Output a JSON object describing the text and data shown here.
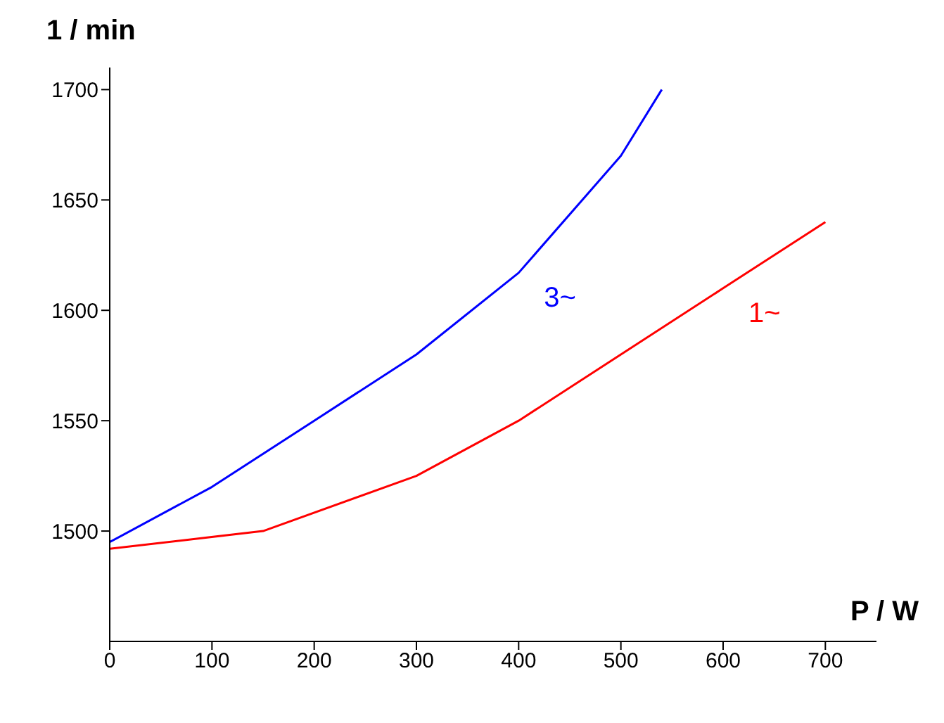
{
  "chart_data": {
    "type": "line",
    "xlabel": "P / W",
    "ylabel": "1 / min",
    "xlim": [
      0,
      750
    ],
    "xticks": [
      0,
      100,
      200,
      300,
      400,
      500,
      600,
      700
    ],
    "ylim": [
      1450,
      1710
    ],
    "yticks": [
      1500,
      1550,
      1600,
      1650,
      1700
    ],
    "grid": false,
    "legend": false,
    "marker": "none",
    "line_style": "solid",
    "series": [
      {
        "name": "3~",
        "color": "#0000ff",
        "x": [
          0,
          100,
          200,
          300,
          400,
          500,
          540
        ],
        "values": [
          1495,
          1520,
          1550,
          1580,
          1617,
          1670,
          1700
        ]
      },
      {
        "name": "1~",
        "color": "#ff0000",
        "x": [
          0,
          150,
          300,
          400,
          500,
          600,
          700
        ],
        "values": [
          1492,
          1500,
          1525,
          1550,
          1580,
          1610,
          1640
        ]
      }
    ]
  }
}
